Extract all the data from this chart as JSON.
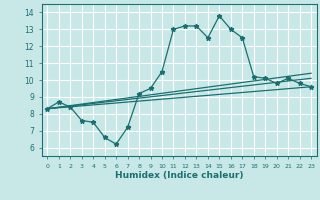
{
  "xlabel": "Humidex (Indice chaleur)",
  "xlim": [
    -0.5,
    23.5
  ],
  "ylim": [
    5.5,
    14.5
  ],
  "xticks": [
    0,
    1,
    2,
    3,
    4,
    5,
    6,
    7,
    8,
    9,
    10,
    11,
    12,
    13,
    14,
    15,
    16,
    17,
    18,
    19,
    20,
    21,
    22,
    23
  ],
  "yticks": [
    6,
    7,
    8,
    9,
    10,
    11,
    12,
    13,
    14
  ],
  "bg_color": "#c8e8e8",
  "line_color": "#1a7070",
  "grid_color": "#ffffff",
  "lines": [
    {
      "x": [
        0,
        1,
        2,
        3,
        4,
        5,
        6,
        7,
        8,
        9,
        10,
        11,
        12,
        13,
        14,
        15,
        16,
        17,
        18,
        19,
        20,
        21,
        22,
        23
      ],
      "y": [
        8.3,
        8.7,
        8.4,
        7.6,
        7.5,
        6.6,
        6.2,
        7.2,
        9.2,
        9.5,
        10.5,
        13.0,
        13.2,
        13.2,
        12.5,
        13.8,
        13.0,
        12.5,
        10.2,
        10.1,
        9.8,
        10.1,
        9.8,
        9.6
      ],
      "marker": true
    },
    {
      "x": [
        0,
        23
      ],
      "y": [
        8.3,
        9.6
      ],
      "marker": false
    },
    {
      "x": [
        0,
        23
      ],
      "y": [
        8.3,
        10.1
      ],
      "marker": false
    },
    {
      "x": [
        0,
        23
      ],
      "y": [
        8.3,
        10.4
      ],
      "marker": false
    }
  ]
}
